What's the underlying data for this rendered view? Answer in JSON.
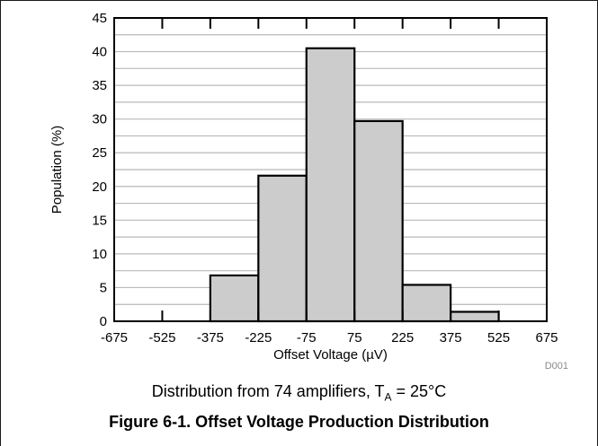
{
  "chart_data": {
    "type": "bar",
    "title": "",
    "xlabel": "Offset Voltage (µV)",
    "ylabel": "Population (%)",
    "bin_edges": [
      -675,
      -525,
      -375,
      -225,
      -75,
      75,
      225,
      375,
      525,
      675
    ],
    "bins": [
      {
        "from": -675,
        "to": -525,
        "value": 0
      },
      {
        "from": -525,
        "to": -375,
        "value": 0
      },
      {
        "from": -375,
        "to": -225,
        "value": 6.8
      },
      {
        "from": -225,
        "to": -75,
        "value": 21.6
      },
      {
        "from": -75,
        "to": 75,
        "value": 40.5
      },
      {
        "from": 75,
        "to": 225,
        "value": 29.7
      },
      {
        "from": 225,
        "to": 375,
        "value": 5.4
      },
      {
        "from": 375,
        "to": 525,
        "value": 1.4
      },
      {
        "from": 525,
        "to": 675,
        "value": 0
      }
    ],
    "xlim": [
      -675,
      675
    ],
    "ylim": [
      0,
      45
    ],
    "x_ticks": [
      "-675",
      "-525",
      "-375",
      "-225",
      "-75",
      "75",
      "225",
      "375",
      "525",
      "675"
    ],
    "y_ticks": [
      "0",
      "5",
      "10",
      "15",
      "20",
      "25",
      "30",
      "35",
      "40",
      "45"
    ],
    "grid": true,
    "bar_color": "#cccccc",
    "edge_color": "#000000",
    "code_label": "D001"
  },
  "caption": {
    "prefix": "Distribution from 74 amplifiers, T",
    "subscript": "A",
    "suffix": " = 25°C"
  },
  "figure_title": "Figure 6-1. Offset Voltage Production Distribution"
}
